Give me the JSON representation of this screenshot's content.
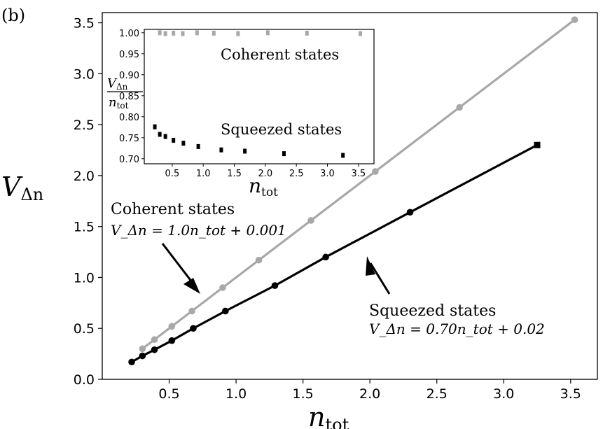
{
  "panel_label": "(b)",
  "chart_data": [
    {
      "type": "line",
      "xlabel": "n_tot",
      "ylabel": "V_Δn",
      "xlabel_main": "n",
      "xlabel_sub": "tot",
      "ylabel_main": "V",
      "ylabel_sub": "Δn",
      "xlim": [
        0.0,
        3.7
      ],
      "ylim": [
        0.0,
        3.6
      ],
      "xticks": [
        0.5,
        1.0,
        1.5,
        2.0,
        2.5,
        3.0,
        3.5
      ],
      "yticks": [
        0.0,
        0.5,
        1.0,
        1.5,
        2.0,
        2.5,
        3.0,
        3.5
      ],
      "xtick_labels": [
        "0.5",
        "1.0",
        "1.5",
        "2.0",
        "2.5",
        "3.0",
        "3.5"
      ],
      "ytick_labels": [
        "0.0",
        "0.5",
        "1.0",
        "1.5",
        "2.0",
        "2.5",
        "3.0",
        "3.5"
      ],
      "grid": false,
      "series": [
        {
          "name": "Coherent states",
          "color": "#a8a8a8",
          "x": [
            0.3,
            0.39,
            0.52,
            0.67,
            0.9,
            1.17,
            1.56,
            2.04,
            2.67,
            3.53
          ],
          "y": [
            0.3,
            0.39,
            0.52,
            0.67,
            0.9,
            1.17,
            1.56,
            2.04,
            2.67,
            3.53
          ],
          "fit": {
            "slope": 1.0,
            "intercept": 0.001
          },
          "label_line1": "Coherent states",
          "label_line2": "V_Δn = 1.0n_tot + 0.001"
        },
        {
          "name": "Squeezed states",
          "color": "#000000",
          "x": [
            0.22,
            0.3,
            0.39,
            0.52,
            0.68,
            0.92,
            1.29,
            1.67,
            2.3,
            3.25
          ],
          "y": [
            0.17,
            0.23,
            0.29,
            0.38,
            0.5,
            0.67,
            0.92,
            1.2,
            1.64,
            2.3
          ],
          "fit": {
            "slope": 0.7,
            "intercept": 0.02
          },
          "label_line1": "Squeezed states",
          "label_line2": "V_Δn = 0.70n_tot + 0.02"
        }
      ]
    },
    {
      "type": "scatter",
      "inset": true,
      "xlabel": "n_tot",
      "ylabel": "V_Δn / n_tot",
      "xlim": [
        0.05,
        3.75
      ],
      "ylim": [
        0.688,
        1.008
      ],
      "xticks": [
        0.5,
        1.0,
        1.5,
        2.0,
        2.5,
        3.0,
        3.5
      ],
      "yticks": [
        0.7,
        0.75,
        0.8,
        0.85,
        0.9,
        0.95,
        1.0
      ],
      "xtick_labels": [
        "0.5",
        "1.0",
        "1.5",
        "2.0",
        "2.5",
        "3.0",
        "3.5"
      ],
      "ytick_labels": [
        "0.70",
        "0.75",
        "0.80",
        "0.85",
        "0.90",
        "0.95",
        "1.00"
      ],
      "series": [
        {
          "name": "Coherent states",
          "color": "#a8a8a8",
          "x": [
            0.3,
            0.39,
            0.52,
            0.67,
            0.9,
            1.17,
            1.56,
            2.04,
            2.67,
            3.53
          ],
          "y": [
            1.0,
            0.998,
            0.999,
            0.998,
            1.0,
            0.999,
            0.998,
            1.0,
            0.999,
            0.998
          ]
        },
        {
          "name": "Squeezed states",
          "color": "#000000",
          "x": [
            0.22,
            0.3,
            0.39,
            0.52,
            0.68,
            0.92,
            1.29,
            1.67,
            2.3,
            3.25
          ],
          "y": [
            0.776,
            0.758,
            0.753,
            0.744,
            0.737,
            0.729,
            0.721,
            0.718,
            0.712,
            0.708
          ]
        }
      ],
      "annotations": [
        "Coherent states",
        "Squeezed states"
      ]
    }
  ]
}
